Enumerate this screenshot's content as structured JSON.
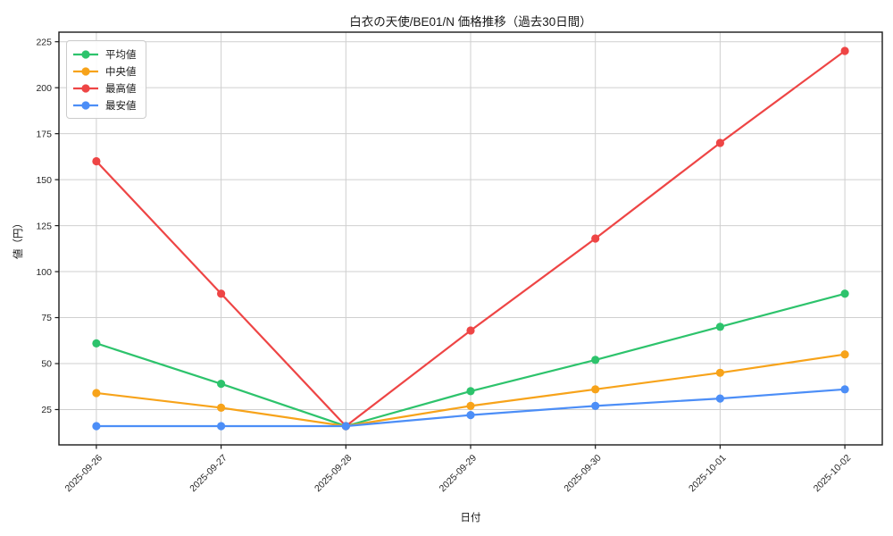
{
  "chart_data": {
    "type": "line",
    "title": "白衣の天使/BE01/N 価格推移（過去30日間）",
    "xlabel": "日付",
    "ylabel": "値（円）",
    "categories": [
      "2025-09-26",
      "2025-09-27",
      "2025-09-28",
      "2025-09-29",
      "2025-09-30",
      "2025-10-01",
      "2025-10-02"
    ],
    "series": [
      {
        "name": "平均値",
        "color": "#2dc36c",
        "values": [
          61,
          39,
          16,
          35,
          52,
          70,
          88
        ]
      },
      {
        "name": "中央値",
        "color": "#f7a31a",
        "values": [
          34,
          26,
          16,
          27,
          36,
          45,
          55
        ]
      },
      {
        "name": "最高値",
        "color": "#ee4545",
        "values": [
          160,
          88,
          16,
          68,
          118,
          170,
          220
        ]
      },
      {
        "name": "最安値",
        "color": "#4c8ef7",
        "values": [
          16,
          16,
          16,
          22,
          27,
          31,
          36
        ]
      }
    ],
    "yticks": [
      25,
      50,
      75,
      100,
      125,
      150,
      175,
      200,
      225
    ],
    "ylim": [
      5.8,
      230.2
    ],
    "xlim": [
      -0.3,
      6.3
    ],
    "grid": true,
    "legend_position": "upper-left",
    "marker": "circle"
  }
}
